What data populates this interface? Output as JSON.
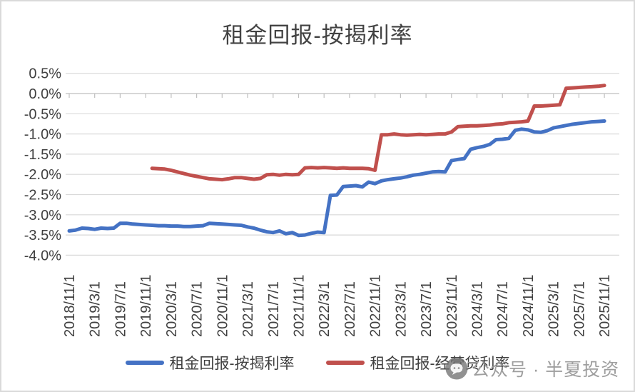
{
  "title": "租金回报-按揭利率",
  "watermark": {
    "icon": "wechat-official-account-icon",
    "text": "公众号 · 半夏投资"
  },
  "legend": [
    {
      "label": "租金回报-按揭利率",
      "color": "#4472C4"
    },
    {
      "label": "租金回报-经营贷利率",
      "color": "#C0504D"
    }
  ],
  "colors": {
    "series_blue": "#4472C4",
    "series_red": "#C0504D",
    "gridline": "#d9d9d9",
    "axis_line": "#bfbfbf",
    "text": "#404040"
  },
  "chart_data": {
    "type": "line",
    "title": "租金回报-按揭利率",
    "x_frequency": "monthly",
    "x_start": "2018/11/1",
    "x_end": "2025/11/1",
    "x_tick_labels": [
      "2018/11/1",
      "2019/3/1",
      "2019/7/1",
      "2019/11/1",
      "2020/3/1",
      "2020/7/1",
      "2020/11/1",
      "2021/3/1",
      "2021/7/1",
      "2021/11/1",
      "2022/3/1",
      "2022/7/1",
      "2022/11/1",
      "2023/3/1",
      "2023/7/1",
      "2023/11/1",
      "2024/3/1",
      "2024/7/1",
      "2024/11/1",
      "2025/3/1",
      "2025/7/1",
      "2025/11/1"
    ],
    "x_label_every_n_months": 4,
    "ylim": [
      -4.0,
      0.5
    ],
    "y_ticks": [
      0.5,
      0.0,
      -0.5,
      -1.0,
      -1.5,
      -2.0,
      -2.5,
      -3.0,
      -3.5,
      -4.0
    ],
    "y_tick_format": "0.0%",
    "grid": true,
    "legend_position": "bottom",
    "series": [
      {
        "name": "租金回报-按揭利率",
        "color": "#4472C4",
        "values": [
          -3.4,
          -3.38,
          -3.33,
          -3.34,
          -3.36,
          -3.33,
          -3.34,
          -3.33,
          -3.21,
          -3.21,
          -3.23,
          -3.24,
          -3.25,
          -3.26,
          -3.27,
          -3.27,
          -3.28,
          -3.28,
          -3.29,
          -3.29,
          -3.28,
          -3.27,
          -3.21,
          -3.22,
          -3.23,
          -3.24,
          -3.25,
          -3.26,
          -3.3,
          -3.33,
          -3.38,
          -3.42,
          -3.44,
          -3.4,
          -3.47,
          -3.44,
          -3.51,
          -3.5,
          -3.46,
          -3.43,
          -3.44,
          -2.52,
          -2.51,
          -2.3,
          -2.29,
          -2.28,
          -2.31,
          -2.19,
          -2.23,
          -2.16,
          -2.13,
          -2.11,
          -2.09,
          -2.06,
          -2.02,
          -2.0,
          -1.97,
          -1.94,
          -1.93,
          -1.94,
          -1.66,
          -1.63,
          -1.61,
          -1.38,
          -1.34,
          -1.31,
          -1.26,
          -1.14,
          -1.13,
          -1.11,
          -0.91,
          -0.88,
          -0.9,
          -0.95,
          -0.96,
          -0.92,
          -0.85,
          -0.82,
          -0.79,
          -0.76,
          -0.74,
          -0.72,
          -0.7,
          -0.69,
          -0.68
        ]
      },
      {
        "name": "租金回报-经营贷利率",
        "color": "#C0504D",
        "values": [
          null,
          null,
          null,
          null,
          null,
          null,
          null,
          null,
          null,
          null,
          null,
          null,
          null,
          -1.85,
          -1.86,
          -1.87,
          -1.9,
          -1.94,
          -1.98,
          -2.02,
          -2.05,
          -2.08,
          -2.11,
          -2.12,
          -2.13,
          -2.11,
          -2.08,
          -2.08,
          -2.1,
          -2.12,
          -2.1,
          -2.01,
          -2.0,
          -2.02,
          -2.0,
          -2.01,
          -2.0,
          -1.84,
          -1.83,
          -1.84,
          -1.83,
          -1.84,
          -1.85,
          -1.84,
          -1.85,
          -1.85,
          -1.85,
          -1.86,
          -1.9,
          -1.02,
          -1.02,
          -1.0,
          -1.02,
          -1.03,
          -1.02,
          -1.01,
          -1.02,
          -1.01,
          -1.0,
          -1.0,
          -0.95,
          -0.82,
          -0.81,
          -0.8,
          -0.8,
          -0.79,
          -0.78,
          -0.76,
          -0.75,
          -0.72,
          -0.71,
          -0.7,
          -0.68,
          -0.31,
          -0.31,
          -0.3,
          -0.29,
          -0.28,
          0.13,
          0.14,
          0.15,
          0.16,
          0.17,
          0.18,
          0.2
        ]
      }
    ]
  }
}
